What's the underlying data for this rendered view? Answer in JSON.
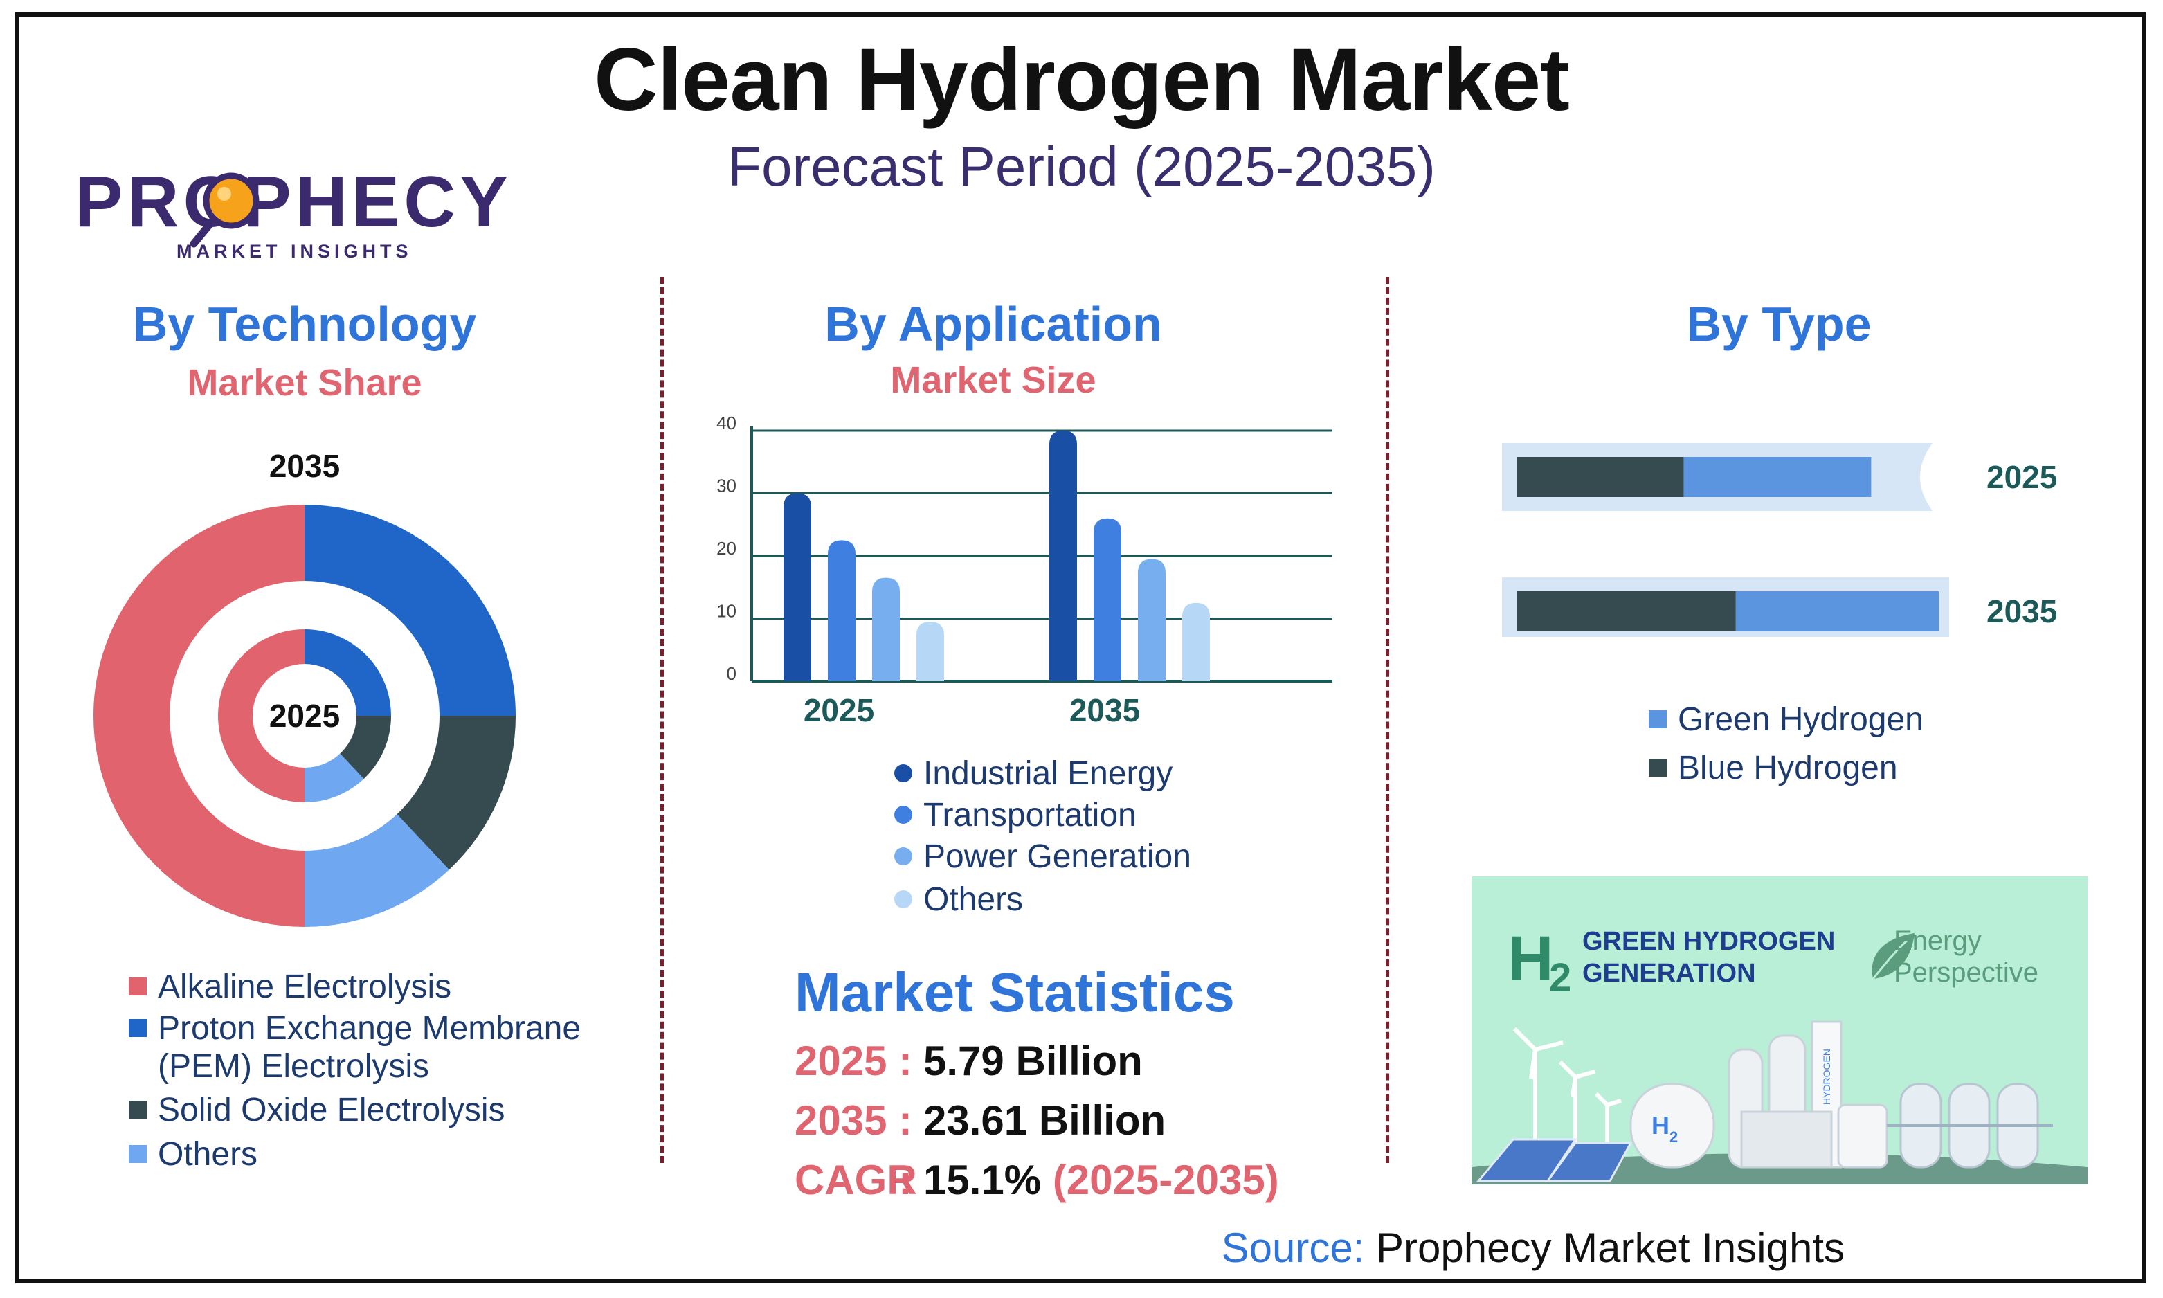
{
  "title": "Clean Hydrogen Market",
  "subtitle": "Forecast Period (2025-2035)",
  "logo": {
    "word": "PROPHECY",
    "sub": "MARKET INSIGHTS"
  },
  "colors": {
    "alkaline": "#e0636e",
    "pem": "#1f66c8",
    "solid_oxide": "#354b50",
    "others_tech": "#6fa8f0",
    "industrial": "#1a4fa6",
    "transportation": "#3f7fe0",
    "power": "#77aef0",
    "others_app": "#b6d8f6",
    "green": "#5b95e0",
    "blue": "#354b50"
  },
  "technology": {
    "heading": "By Technology",
    "subheading": "Market Share",
    "outer_label": "2035",
    "inner_label": "2025",
    "legend": [
      {
        "label": "Alkaline Electrolysis",
        "color": "#e0636e"
      },
      {
        "label": "Proton Exchange Membrane",
        "label2": "(PEM) Electrolysis",
        "color": "#1f66c8"
      },
      {
        "label": "Solid Oxide Electrolysis",
        "color": "#354b50"
      },
      {
        "label": "Others",
        "color": "#6fa8f0"
      }
    ]
  },
  "application": {
    "heading": "By Application",
    "subheading": "Market Size",
    "legend": [
      "Industrial Energy",
      "Transportation",
      "Power Generation",
      "Others"
    ]
  },
  "type_section": {
    "heading": "By Type",
    "legend": [
      "Green Hydrogen",
      "Blue Hydrogen"
    ]
  },
  "chart_data": [
    {
      "type": "pie",
      "variant": "double-donut",
      "categories": [
        "Alkaline Electrolysis",
        "Proton Exchange Membrane (PEM) Electrolysis",
        "Solid Oxide Electrolysis",
        "Others"
      ],
      "series": [
        {
          "name": "2035",
          "values": [
            50,
            25,
            13,
            12
          ]
        },
        {
          "name": "2025",
          "values": [
            50,
            25,
            13,
            12
          ]
        }
      ]
    },
    {
      "type": "bar",
      "categories": [
        "2025",
        "2035"
      ],
      "series": [
        {
          "name": "Industrial Energy",
          "values": [
            30,
            40
          ]
        },
        {
          "name": "Transportation",
          "values": [
            22.5,
            26
          ]
        },
        {
          "name": "Power Generation",
          "values": [
            16.5,
            19.5
          ]
        },
        {
          "name": "Others",
          "values": [
            9.5,
            12.5
          ]
        }
      ],
      "ylim": [
        0,
        40
      ],
      "yticks": [
        0,
        10,
        20,
        30,
        40
      ],
      "grid": true
    },
    {
      "type": "bar",
      "orientation": "horizontal-stacked",
      "categories": [
        "2025",
        "2035"
      ],
      "series": [
        {
          "name": "Blue Hydrogen",
          "values": [
            32,
            42
          ]
        },
        {
          "name": "Green Hydrogen",
          "values": [
            36,
            39
          ]
        }
      ],
      "xlim": [
        0,
        100
      ]
    }
  ],
  "stats": {
    "heading": "Market Statistics",
    "rows": [
      {
        "key": "2025",
        "value": "5.79 Billion",
        "extra": ""
      },
      {
        "key": "2035",
        "value": "23.61 Billion",
        "extra": ""
      },
      {
        "key": "CAGR",
        "value": "15.1%",
        "extra": "(2025-2035)"
      }
    ]
  },
  "promo": {
    "h2": "H",
    "h2_sub": "2",
    "line1": "GREEN HYDROGEN",
    "line2": "GENERATION",
    "energy1": "Energy",
    "energy2": "Perspective",
    "tank_h": "H",
    "tank_sub": "2",
    "pillar_text": "HYDROGEN"
  },
  "source": {
    "label": "Source:",
    "value": "Prophecy Market Insights"
  }
}
